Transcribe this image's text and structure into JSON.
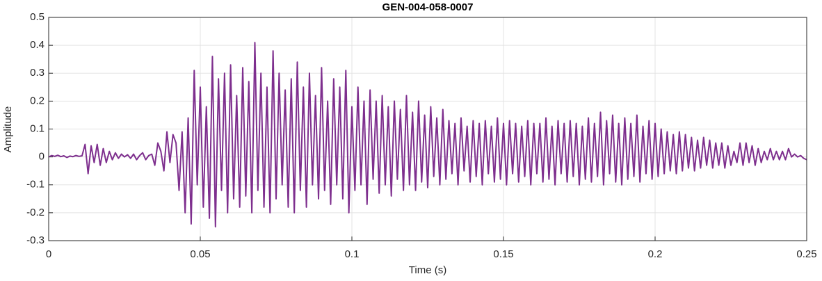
{
  "chart_data": {
    "type": "line",
    "title": "GEN-004-058-0007",
    "xlabel": "Time (s)",
    "ylabel": "Amplitude",
    "color": "#7e2f8e",
    "grid": true,
    "xlim": [
      0,
      0.25
    ],
    "xticks": [
      0,
      0.05,
      0.1,
      0.15,
      0.2,
      0.25
    ],
    "ylim": [
      -0.3,
      0.5
    ],
    "yticks": [
      -0.3,
      -0.2,
      -0.1,
      0,
      0.1,
      0.2,
      0.3,
      0.4,
      0.5
    ],
    "x": [
      0,
      0.001,
      0.002,
      0.003,
      0.004,
      0.005,
      0.006,
      0.007,
      0.008,
      0.009,
      0.01,
      0.011,
      0.012,
      0.013,
      0.014,
      0.015,
      0.016,
      0.017,
      0.018,
      0.019,
      0.02,
      0.021,
      0.022,
      0.023,
      0.024,
      0.025,
      0.026,
      0.027,
      0.028,
      0.029,
      0.03,
      0.031,
      0.032,
      0.033,
      0.034,
      0.035,
      0.036,
      0.037,
      0.038,
      0.039,
      0.04,
      0.041,
      0.042,
      0.043,
      0.044,
      0.045,
      0.046,
      0.047,
      0.048,
      0.049,
      0.05,
      0.051,
      0.052,
      0.053,
      0.054,
      0.055,
      0.056,
      0.057,
      0.058,
      0.059,
      0.06,
      0.061,
      0.062,
      0.063,
      0.064,
      0.065,
      0.066,
      0.067,
      0.068,
      0.069,
      0.07,
      0.071,
      0.072,
      0.073,
      0.074,
      0.075,
      0.076,
      0.077,
      0.078,
      0.079,
      0.08,
      0.081,
      0.082,
      0.083,
      0.084,
      0.085,
      0.086,
      0.087,
      0.088,
      0.089,
      0.09,
      0.091,
      0.092,
      0.093,
      0.094,
      0.095,
      0.096,
      0.097,
      0.098,
      0.099,
      0.1,
      0.101,
      0.102,
      0.103,
      0.104,
      0.105,
      0.106,
      0.107,
      0.108,
      0.109,
      0.11,
      0.111,
      0.112,
      0.113,
      0.114,
      0.115,
      0.116,
      0.117,
      0.118,
      0.119,
      0.12,
      0.121,
      0.122,
      0.123,
      0.124,
      0.125,
      0.126,
      0.127,
      0.128,
      0.129,
      0.13,
      0.131,
      0.132,
      0.133,
      0.134,
      0.135,
      0.136,
      0.137,
      0.138,
      0.139,
      0.14,
      0.141,
      0.142,
      0.143,
      0.144,
      0.145,
      0.146,
      0.147,
      0.148,
      0.149,
      0.15,
      0.151,
      0.152,
      0.153,
      0.154,
      0.155,
      0.156,
      0.157,
      0.158,
      0.159,
      0.16,
      0.161,
      0.162,
      0.163,
      0.164,
      0.165,
      0.166,
      0.167,
      0.168,
      0.169,
      0.17,
      0.171,
      0.172,
      0.173,
      0.174,
      0.175,
      0.176,
      0.177,
      0.178,
      0.179,
      0.18,
      0.181,
      0.182,
      0.183,
      0.184,
      0.185,
      0.186,
      0.187,
      0.188,
      0.189,
      0.19,
      0.191,
      0.192,
      0.193,
      0.194,
      0.195,
      0.196,
      0.197,
      0.198,
      0.199,
      0.2,
      0.201,
      0.202,
      0.203,
      0.204,
      0.205,
      0.206,
      0.207,
      0.208,
      0.209,
      0.21,
      0.211,
      0.212,
      0.213,
      0.214,
      0.215,
      0.216,
      0.217,
      0.218,
      0.219,
      0.22,
      0.221,
      0.222,
      0.223,
      0.224,
      0.225,
      0.226,
      0.227,
      0.228,
      0.229,
      0.23,
      0.231,
      0.232,
      0.233,
      0.234,
      0.235,
      0.236,
      0.237,
      0.238,
      0.239,
      0.24,
      0.241,
      0.242,
      0.243,
      0.244,
      0.245,
      0.246,
      0.247,
      0.248,
      0.249,
      0.25
    ],
    "values": [
      0,
      0.005,
      0.002,
      0.006,
      0.001,
      0.004,
      -0.002,
      0.003,
      0.001,
      0.005,
      0.002,
      0.004,
      0.045,
      -0.06,
      0.04,
      -0.02,
      0.045,
      -0.03,
      0.03,
      -0.02,
      0.02,
      -0.01,
      0.015,
      -0.005,
      0.01,
      0,
      0.008,
      -0.005,
      0.01,
      -0.01,
      0.005,
      0.015,
      -0.01,
      0.005,
      0.01,
      -0.03,
      0.05,
      0.02,
      -0.05,
      0.09,
      -0.02,
      0.08,
      0.05,
      -0.12,
      0.09,
      -0.2,
      0.14,
      -0.24,
      0.31,
      -0.1,
      0.25,
      -0.18,
      0.18,
      -0.22,
      0.36,
      -0.25,
      0.28,
      -0.12,
      0.3,
      -0.2,
      0.33,
      -0.15,
      0.22,
      -0.18,
      0.32,
      -0.14,
      0.27,
      -0.2,
      0.41,
      -0.12,
      0.3,
      -0.18,
      0.25,
      -0.2,
      0.38,
      -0.15,
      0.3,
      -0.1,
      0.24,
      -0.18,
      0.28,
      -0.2,
      0.34,
      -0.12,
      0.25,
      -0.18,
      0.3,
      -0.1,
      0.22,
      -0.15,
      0.32,
      -0.12,
      0.2,
      -0.17,
      0.28,
      -0.1,
      0.25,
      -0.15,
      0.31,
      -0.2,
      0.18,
      -0.12,
      0.25,
      -0.1,
      0.2,
      -0.17,
      0.24,
      -0.08,
      0.2,
      -0.13,
      0.22,
      -0.1,
      0.18,
      -0.14,
      0.2,
      -0.08,
      0.17,
      -0.12,
      0.22,
      -0.1,
      0.16,
      -0.12,
      0.2,
      -0.09,
      0.15,
      -0.11,
      0.18,
      -0.07,
      0.14,
      -0.1,
      0.17,
      -0.08,
      0.13,
      -0.06,
      0.12,
      -0.1,
      0.14,
      -0.05,
      0.11,
      -0.09,
      0.13,
      -0.07,
      0.12,
      -0.1,
      0.13,
      -0.06,
      0.11,
      -0.09,
      0.14,
      -0.08,
      0.12,
      -0.1,
      0.13,
      -0.06,
      0.12,
      -0.09,
      0.11,
      -0.07,
      0.13,
      -0.1,
      0.12,
      -0.06,
      0.12,
      -0.09,
      0.14,
      -0.08,
      0.11,
      -0.1,
      0.13,
      -0.06,
      0.12,
      -0.09,
      0.13,
      -0.07,
      0.12,
      -0.1,
      0.11,
      -0.08,
      0.14,
      -0.09,
      0.12,
      -0.07,
      0.16,
      -0.1,
      0.13,
      -0.06,
      0.15,
      -0.09,
      0.12,
      -0.1,
      0.14,
      -0.08,
      0.12,
      -0.07,
      0.15,
      -0.09,
      0.11,
      -0.06,
      0.13,
      -0.08,
      0.12,
      -0.07,
      0.1,
      -0.06,
      0.09,
      -0.05,
      0.08,
      -0.06,
      0.09,
      -0.05,
      0.08,
      -0.04,
      0.07,
      -0.05,
      0.06,
      -0.04,
      0.07,
      -0.03,
      0.06,
      -0.04,
      0.05,
      -0.03,
      0.05,
      -0.04,
      0.04,
      -0.03,
      0.02,
      -0.02,
      0.05,
      -0.03,
      0.05,
      -0.02,
      0.04,
      -0.03,
      0.03,
      -0.02,
      0.02,
      -0.01,
      0.03,
      -0.01,
      0.02,
      -0.01,
      0.02,
      -0.01,
      0.03,
      0,
      0.01,
      0,
      0.005,
      -0.005,
      -0.01
    ]
  }
}
